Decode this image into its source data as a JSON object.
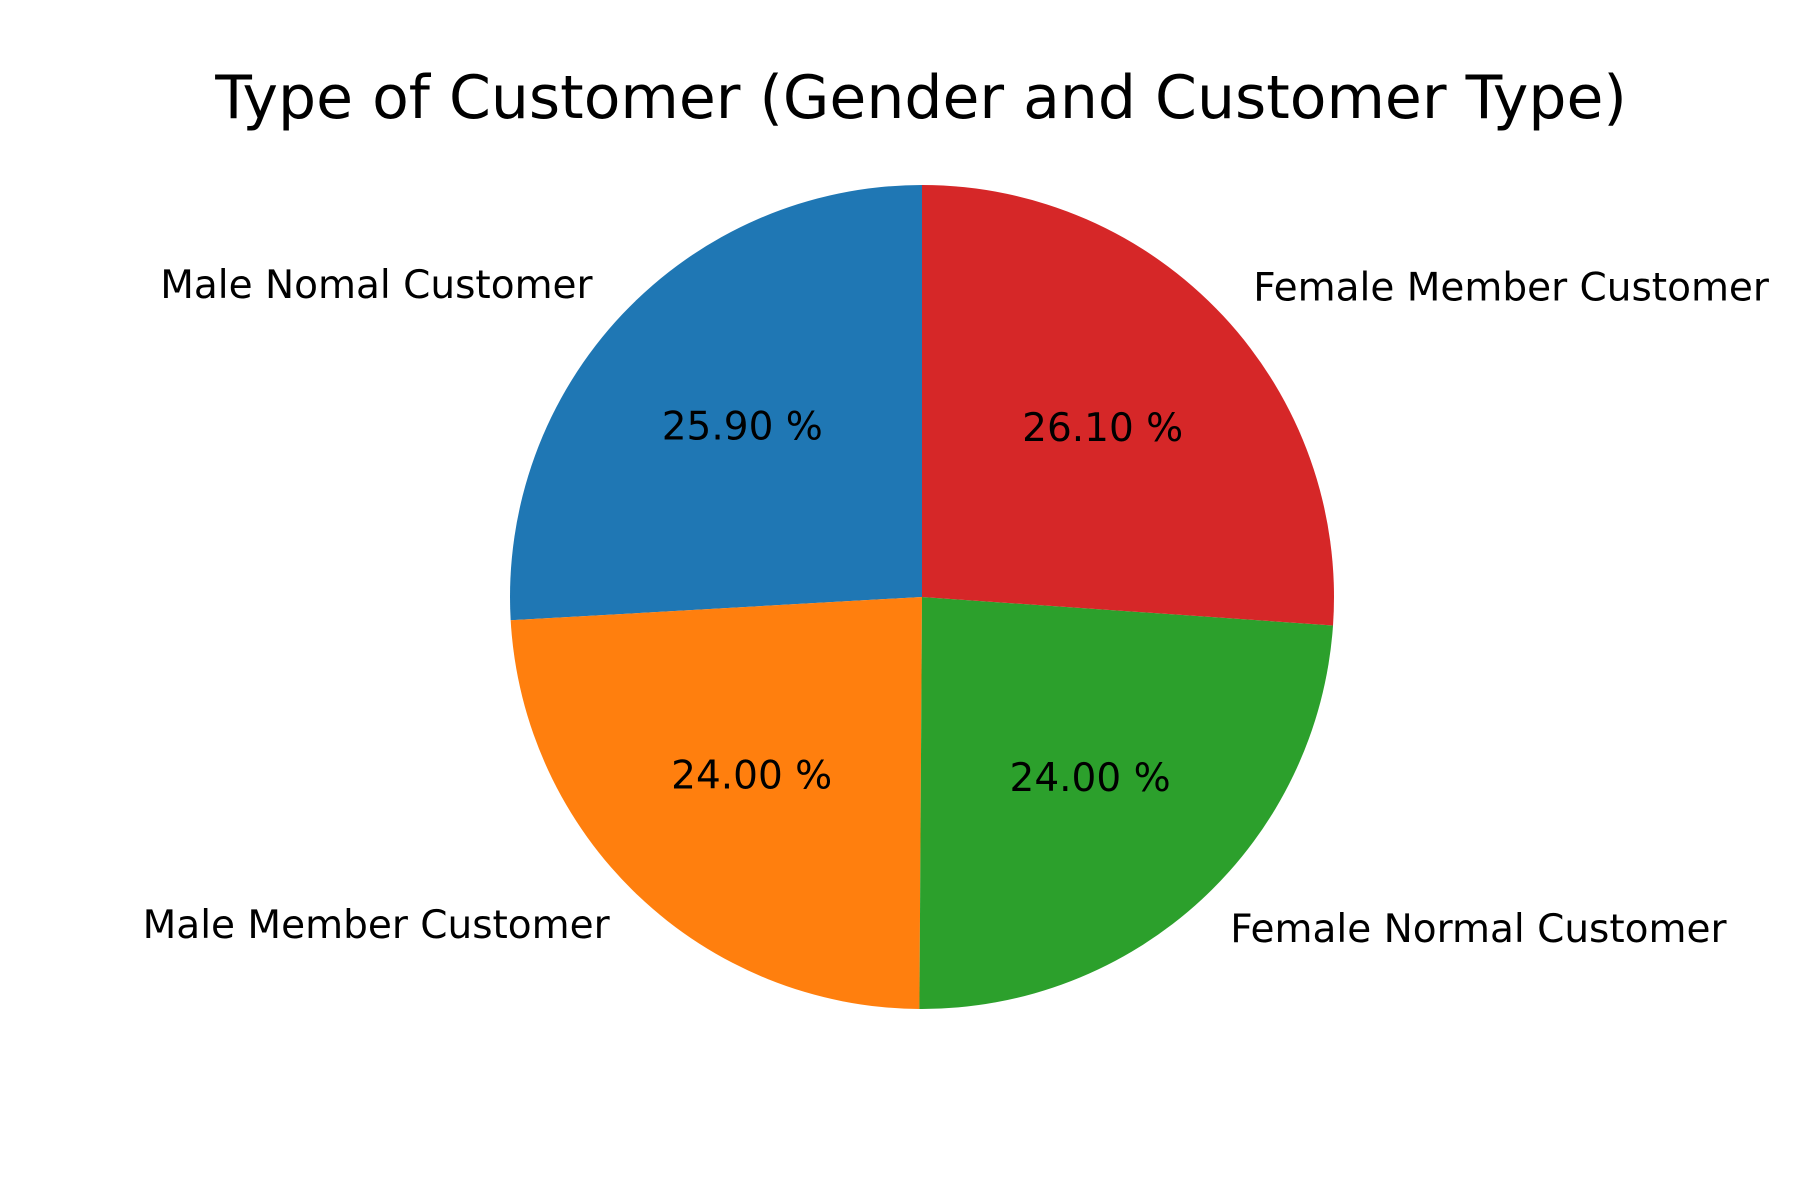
{
  "chart_data": {
    "type": "pie",
    "title": "Type of Customer (Gender and Customer Type)",
    "labels": [
      "Male Nomal Customer",
      "Male Member Customer",
      "Female Normal Customer",
      "Female Member Customer"
    ],
    "values": [
      25.9,
      24.0,
      24.0,
      26.1
    ],
    "value_labels": [
      "25.90 %",
      "24.00 %",
      "24.00 %",
      "26.10 %"
    ],
    "colors": [
      "#1f77b4",
      "#ff7f0e",
      "#2ca02c",
      "#d62728"
    ],
    "start_angle_deg": 90,
    "direction": "counterclockwise",
    "legend": "none"
  }
}
